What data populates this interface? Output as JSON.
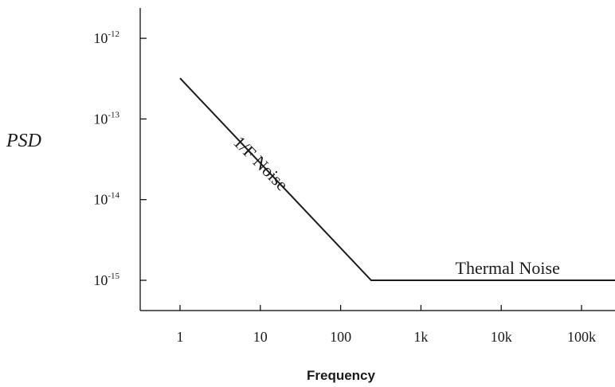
{
  "chart_data": {
    "type": "line",
    "title": "",
    "xlabel": "Frequency",
    "ylabel": "PSD",
    "x_scale": "log",
    "y_scale": "log",
    "x_ticks": [
      {
        "value": 1,
        "label": "1"
      },
      {
        "value": 10,
        "label": "10"
      },
      {
        "value": 100,
        "label": "100"
      },
      {
        "value": 1000,
        "label": "1k"
      },
      {
        "value": 10000,
        "label": "10k"
      },
      {
        "value": 100000,
        "label": "100k"
      }
    ],
    "y_ticks": [
      {
        "value": 1e-12,
        "base": "10",
        "exp": "-12"
      },
      {
        "value": 1e-13,
        "base": "10",
        "exp": "-13"
      },
      {
        "value": 1e-14,
        "base": "10",
        "exp": "-14"
      },
      {
        "value": 1e-15,
        "base": "10",
        "exp": "-15"
      }
    ],
    "series": [
      {
        "points": [
          [
            1,
            3.2e-13
          ],
          [
            240,
            1e-15
          ],
          [
            500000,
            1e-15
          ]
        ]
      }
    ],
    "annotations": [
      {
        "text": "1/F Noise",
        "x": 9,
        "y": 2.5e-14
      },
      {
        "text": "Thermal Noise",
        "x": 12000,
        "y": 1.2e-15
      }
    ],
    "grid": false,
    "colors": {
      "line": "#1a1a1a",
      "axis": "#000000",
      "text": "#1a1a1a"
    }
  }
}
